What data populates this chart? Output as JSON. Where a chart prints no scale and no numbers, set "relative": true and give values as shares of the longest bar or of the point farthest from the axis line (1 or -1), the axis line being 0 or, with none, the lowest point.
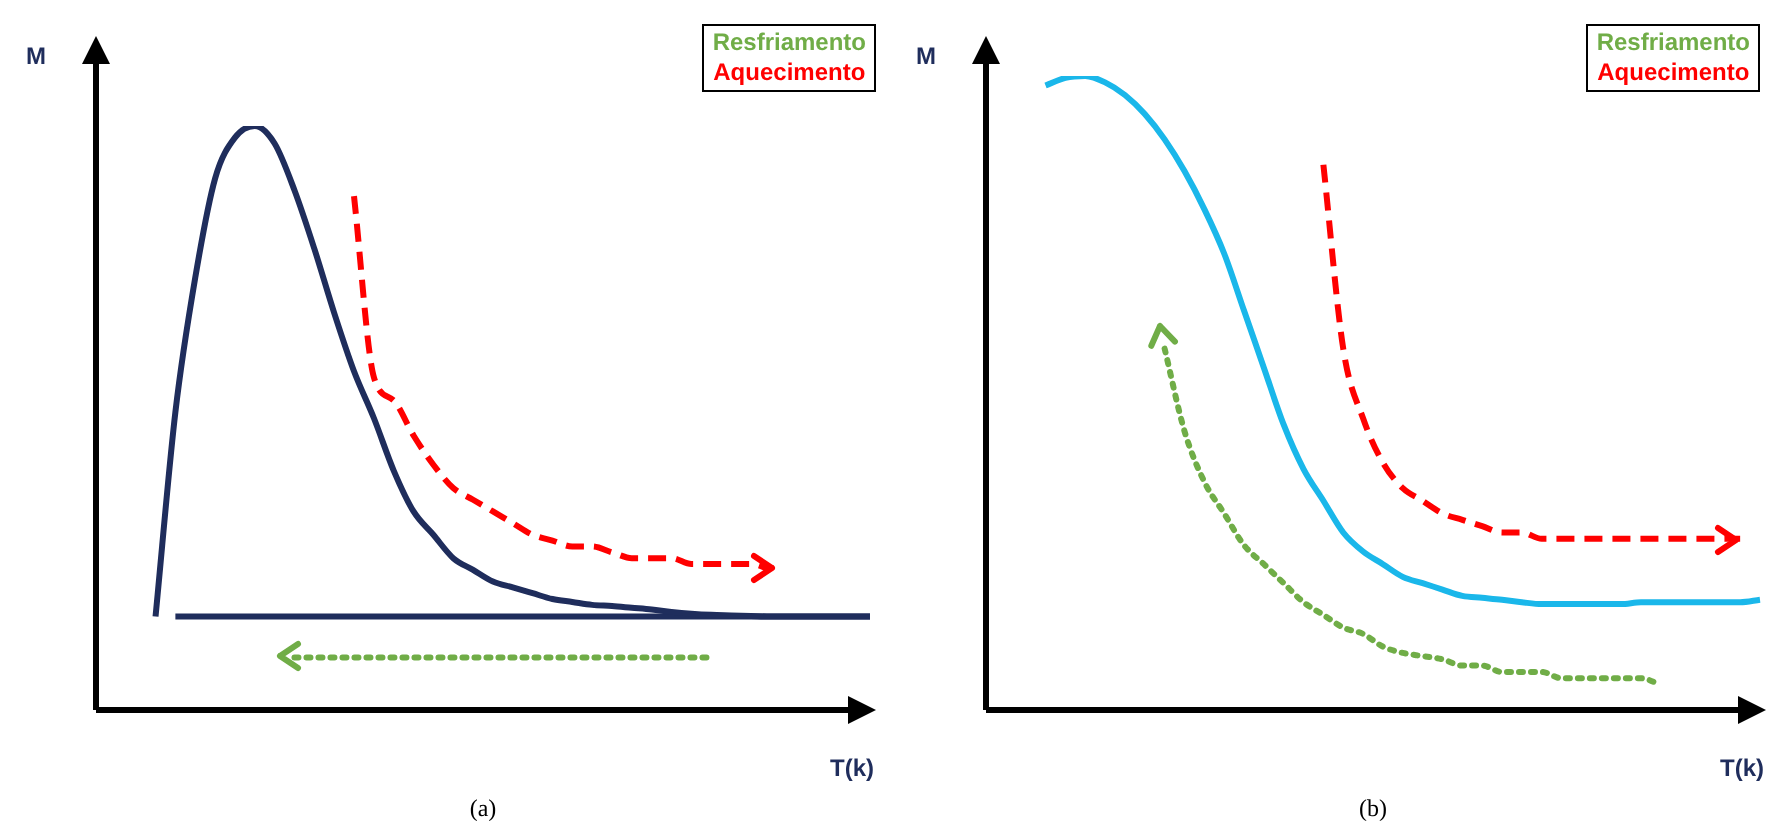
{
  "chart_data": [
    {
      "type": "line",
      "title": "(a)",
      "xlabel": "T(k)",
      "ylabel": "M",
      "relative": true,
      "legend": "top right",
      "categories": [
        null,
        null,
        null,
        null,
        null,
        null,
        null,
        null,
        null,
        null,
        null,
        null,
        null,
        null,
        null,
        null,
        null,
        null,
        null,
        null,
        null,
        null,
        null,
        null,
        null,
        null,
        null,
        null,
        null,
        null,
        null,
        null,
        null,
        null,
        null,
        null,
        null,
        null,
        null,
        null
      ],
      "series": [
        {
          "color": "#1f2d5c",
          "line_style": "solid",
          "values": [
            null,
            null,
            null,
            0.16,
            0.51,
            0.74,
            0.91,
            0.98,
            1,
            0.97,
            0.89,
            0.79,
            0.68,
            0.58,
            0.5,
            0.41,
            0.34,
            0.3,
            0.26,
            0.24,
            0.22,
            0.21,
            0.2,
            0.19,
            0.185,
            0.18,
            0.178,
            0.175,
            0.172,
            0.168,
            0.165,
            0.163,
            0.162,
            0.161,
            0.16,
            0.16,
            0.16,
            0.16,
            0.16,
            0.16
          ]
        },
        {
          "color": "#1f2d5c",
          "line_style": "solid",
          "values": [
            null,
            null,
            null,
            null,
            0.16,
            0.16,
            0.16,
            0.16,
            0.16,
            0.16,
            0.16,
            0.16,
            0.16,
            0.16,
            0.16,
            0.16,
            0.16,
            0.16,
            0.16,
            0.16,
            0.16,
            0.16,
            0.16,
            0.16,
            0.16,
            0.16,
            0.16,
            0.16,
            0.16,
            0.16,
            0.16,
            0.16,
            0.16,
            0.16,
            0.16,
            0.16,
            0.16,
            0.16,
            0.16,
            0.16
          ]
        },
        {
          "name": "Resfriamento",
          "color": "#70ad47",
          "line_style": "dotted",
          "values": [
            null,
            null,
            null,
            null,
            null,
            null,
            null,
            null,
            null,
            null,
            0.09,
            0.09,
            0.09,
            0.09,
            0.09,
            0.09,
            0.09,
            0.09,
            0.09,
            0.09,
            0.09,
            0.09,
            0.09,
            0.09,
            0.09,
            0.09,
            0.09,
            0.09,
            0.09,
            0.09,
            0.09,
            0.09,
            null,
            null,
            null,
            null,
            null,
            null,
            null,
            null
          ]
        },
        {
          "name": "Aquecimento",
          "color": "#ff0000",
          "line_style": "dashed",
          "values": [
            null,
            null,
            null,
            null,
            null,
            null,
            null,
            null,
            null,
            null,
            null,
            null,
            null,
            0.88,
            0.57,
            0.53,
            0.47,
            0.42,
            0.38,
            0.36,
            0.34,
            0.32,
            0.3,
            0.29,
            0.28,
            0.28,
            0.27,
            0.26,
            0.26,
            0.26,
            0.25,
            0.25,
            0.25,
            0.25,
            0.24,
            null,
            null,
            null,
            null,
            null
          ]
        }
      ]
    },
    {
      "type": "line",
      "title": "(b)",
      "xlabel": "T(k)",
      "ylabel": "M",
      "relative": true,
      "legend": "top right",
      "categories": [
        null,
        null,
        null,
        null,
        null,
        null,
        null,
        null,
        null,
        null,
        null,
        null,
        null,
        null,
        null,
        null,
        null,
        null,
        null,
        null,
        null,
        null,
        null,
        null,
        null,
        null,
        null,
        null,
        null,
        null,
        null,
        null,
        null,
        null,
        null,
        null,
        null,
        null,
        null,
        null
      ],
      "series": [
        {
          "color": "#1ab7ea",
          "line_style": "solid",
          "values": [
            null,
            null,
            null,
            0.985,
            0.997,
            1,
            0.99,
            0.97,
            0.94,
            0.9,
            0.85,
            0.79,
            0.72,
            0.63,
            0.54,
            0.45,
            0.38,
            0.33,
            0.28,
            0.25,
            0.23,
            0.21,
            0.2,
            0.19,
            0.18,
            0.177,
            0.174,
            0.17,
            0.167,
            0.167,
            0.167,
            0.167,
            0.167,
            0.17,
            0.17,
            0.17,
            0.17,
            0.17,
            0.17,
            0.174
          ]
        },
        {
          "name": "Resfriamento",
          "color": "#70ad47",
          "line_style": "dotted",
          "values": [
            null,
            null,
            null,
            null,
            null,
            null,
            null,
            null,
            null,
            0.57,
            0.44,
            0.36,
            0.31,
            0.26,
            0.23,
            0.2,
            0.17,
            0.15,
            0.13,
            0.12,
            0.1,
            0.09,
            0.085,
            0.08,
            0.07,
            0.07,
            0.06,
            0.06,
            0.06,
            0.05,
            0.05,
            0.05,
            0.05,
            0.05,
            0.04,
            null,
            null,
            null,
            null,
            null
          ]
        },
        {
          "name": "Aquecimento",
          "color": "#ff0000",
          "line_style": "dashed",
          "values": [
            null,
            null,
            null,
            null,
            null,
            null,
            null,
            null,
            null,
            null,
            null,
            null,
            null,
            null,
            null,
            null,
            null,
            0.86,
            0.57,
            0.46,
            0.39,
            0.35,
            0.33,
            0.31,
            0.3,
            0.29,
            0.28,
            0.28,
            0.27,
            0.27,
            0.27,
            0.27,
            0.27,
            0.27,
            0.27,
            0.27,
            0.27,
            0.27,
            0.27,
            null
          ]
        }
      ]
    }
  ]
}
